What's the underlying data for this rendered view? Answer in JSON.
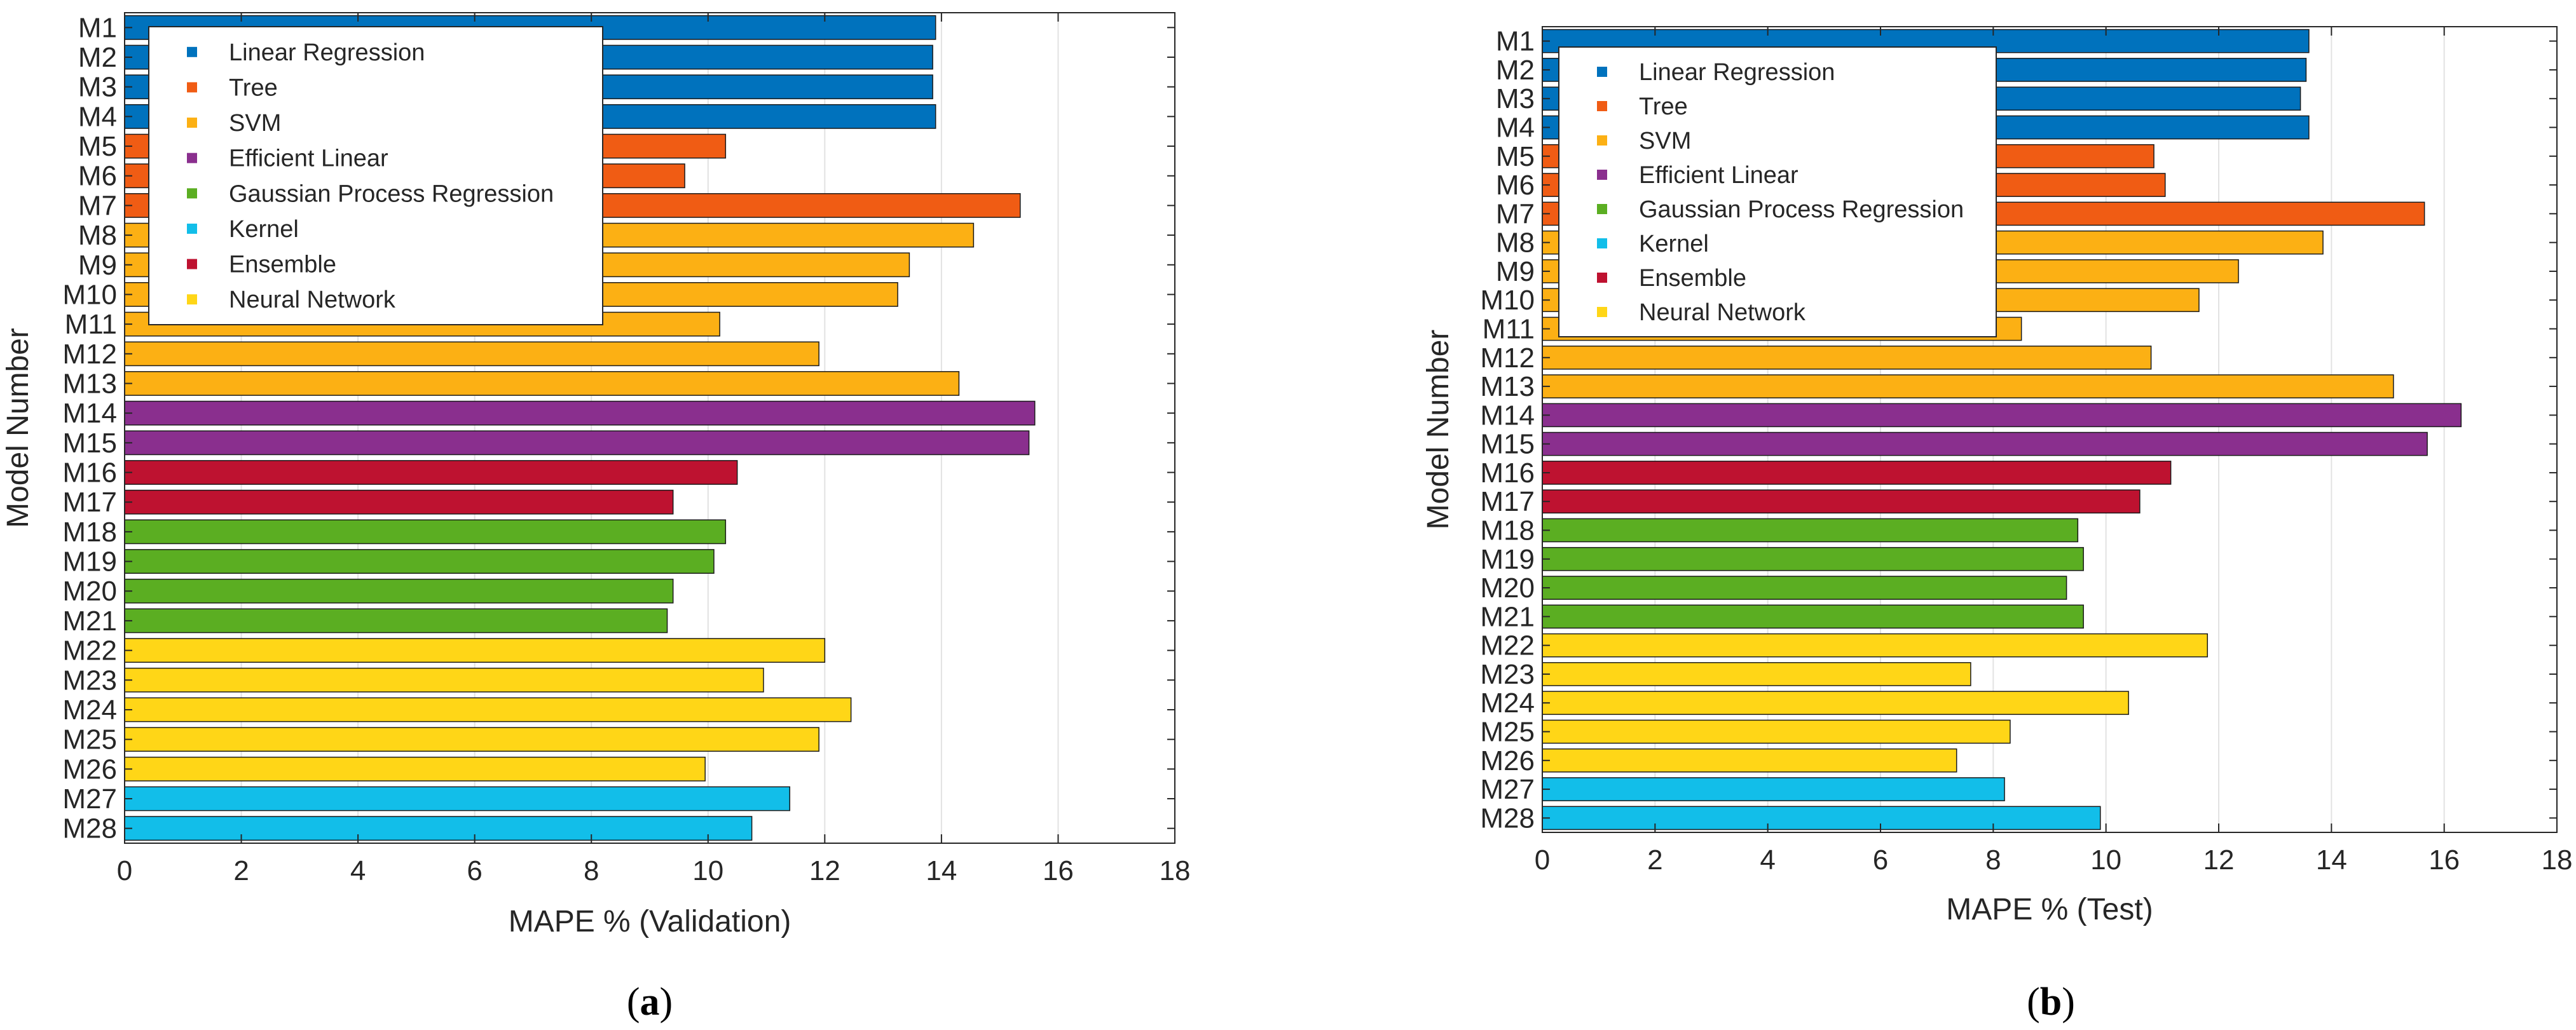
{
  "chart_data": [
    {
      "type": "bar",
      "orientation": "horizontal",
      "panel_prefix": "(",
      "panel_letter": "a",
      "panel_suffix": ")",
      "xlabel": "MAPE % (Validation)",
      "ylabel": "Model Number",
      "xlim": [
        0,
        18
      ],
      "xticks": [
        "0",
        "2",
        "4",
        "6",
        "8",
        "10",
        "12",
        "14",
        "16",
        "18"
      ],
      "grid": "vertical",
      "legend_position": "top-left",
      "categories": [
        "M1",
        "M2",
        "M3",
        "M4",
        "M5",
        "M6",
        "M7",
        "M8",
        "M9",
        "M10",
        "M11",
        "M12",
        "M13",
        "M14",
        "M15",
        "M16",
        "M17",
        "M18",
        "M19",
        "M20",
        "M21",
        "M22",
        "M23",
        "M24",
        "M25",
        "M26",
        "M27",
        "M28"
      ],
      "values": [
        13.9,
        13.85,
        13.85,
        13.9,
        10.3,
        9.6,
        15.35,
        14.55,
        13.45,
        13.25,
        10.2,
        11.9,
        14.3,
        15.6,
        15.5,
        10.5,
        9.4,
        10.3,
        10.1,
        9.4,
        9.3,
        12.0,
        10.95,
        12.45,
        11.9,
        9.95,
        11.4,
        10.75
      ],
      "groups": [
        "Linear Regression",
        "Linear Regression",
        "Linear Regression",
        "Linear Regression",
        "Tree",
        "Tree",
        "Tree",
        "SVM",
        "SVM",
        "SVM",
        "SVM",
        "SVM",
        "SVM",
        "Efficient Linear",
        "Efficient Linear",
        "Ensemble",
        "Ensemble",
        "Gaussian Process Regression",
        "Gaussian Process Regression",
        "Gaussian Process Regression",
        "Gaussian Process Regression",
        "Neural Network",
        "Neural Network",
        "Neural Network",
        "Neural Network",
        "Neural Network",
        "Kernel",
        "Kernel"
      ]
    },
    {
      "type": "bar",
      "orientation": "horizontal",
      "panel_prefix": "(",
      "panel_letter": "b",
      "panel_suffix": ")",
      "xlabel": "MAPE % (Test)",
      "ylabel": "Model Number",
      "xlim": [
        0,
        18
      ],
      "xticks": [
        "0",
        "2",
        "4",
        "6",
        "8",
        "10",
        "12",
        "14",
        "16",
        "18"
      ],
      "grid": "vertical",
      "legend_position": "top-left",
      "categories": [
        "M1",
        "M2",
        "M3",
        "M4",
        "M5",
        "M6",
        "M7",
        "M8",
        "M9",
        "M10",
        "M11",
        "M12",
        "M13",
        "M14",
        "M15",
        "M16",
        "M17",
        "M18",
        "M19",
        "M20",
        "M21",
        "M22",
        "M23",
        "M24",
        "M25",
        "M26",
        "M27",
        "M28"
      ],
      "values": [
        13.6,
        13.55,
        13.45,
        13.6,
        10.85,
        11.05,
        15.65,
        13.85,
        12.35,
        11.65,
        8.5,
        10.8,
        15.1,
        16.3,
        15.7,
        11.15,
        10.6,
        9.5,
        9.6,
        9.3,
        9.6,
        11.8,
        7.6,
        10.4,
        8.3,
        7.35,
        8.2,
        9.9
      ],
      "groups": [
        "Linear Regression",
        "Linear Regression",
        "Linear Regression",
        "Linear Regression",
        "Tree",
        "Tree",
        "Tree",
        "SVM",
        "SVM",
        "SVM",
        "SVM",
        "SVM",
        "SVM",
        "Efficient Linear",
        "Efficient Linear",
        "Ensemble",
        "Ensemble",
        "Gaussian Process Regression",
        "Gaussian Process Regression",
        "Gaussian Process Regression",
        "Gaussian Process Regression",
        "Neural Network",
        "Neural Network",
        "Neural Network",
        "Neural Network",
        "Neural Network",
        "Kernel",
        "Kernel"
      ]
    }
  ],
  "legend": [
    {
      "label": "Linear Regression",
      "color": "#0072BD"
    },
    {
      "label": "Tree",
      "color": "#F05C14"
    },
    {
      "label": "SVM",
      "color": "#FCB014"
    },
    {
      "label": "Efficient Linear",
      "color": "#8A2F8E"
    },
    {
      "label": "Gaussian Process Regression",
      "color": "#5BAE22"
    },
    {
      "label": "Kernel",
      "color": "#12BEE9"
    },
    {
      "label": "Ensemble",
      "color": "#BE1230"
    },
    {
      "label": "Neural Network",
      "color": "#FFD617"
    }
  ]
}
